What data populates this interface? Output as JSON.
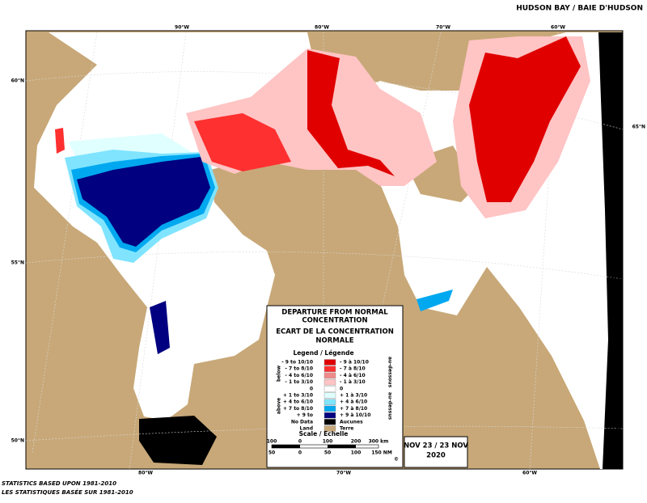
{
  "header": {
    "title": "HUDSON BAY / BAIE D'HUDSON"
  },
  "map": {
    "top_labels": [
      "90°W",
      "80°W",
      "70°W",
      "60°W"
    ],
    "bottom_labels": [
      "80°W",
      "70°W",
      "60°W"
    ],
    "left_labels": [
      "60°N",
      "55°N",
      "50°N"
    ],
    "right_labels": [
      "65°N",
      "60°N",
      "55°N"
    ]
  },
  "legend": {
    "title_en": [
      "DEPARTURE FROM NORMAL",
      "CONCENTRATION"
    ],
    "title_fr": [
      "ECART DE LA CONCENTRATION",
      "NORMALE"
    ],
    "heading": "Legend / Légende",
    "below": "below",
    "above": "above",
    "below_fr": "au-dessous",
    "above_fr": "au-dessus",
    "entries": [
      {
        "left": "- 9 to 10/10",
        "right": "- 9 à 10/10",
        "color": "#e00000"
      },
      {
        "left": "- 7 to 8/10",
        "right": "- 7 à 8/10",
        "color": "#ff3030"
      },
      {
        "left": "- 4 to 6/10",
        "right": "- 4 à 6/10",
        "color": "#f08a8a"
      },
      {
        "left": "- 1 to 3/10",
        "right": "- 1 à 3/10",
        "color": "#ffc4c4"
      },
      {
        "left": "0",
        "right": "0",
        "color": "#ffffff"
      },
      {
        "left": "+ 1 to 3/10",
        "right": "+ 1 à 3/10",
        "color": "#e0ffff"
      },
      {
        "left": "+ 4 to 6/10",
        "right": "+ 4 à 6/10",
        "color": "#80e4ff"
      },
      {
        "left": "+ 7 to 8/10",
        "right": "+ 7 à 8/10",
        "color": "#00a8f0"
      },
      {
        "left": "+ 9 to",
        "right": "+ 9 à 10/10",
        "color": "#000080"
      },
      {
        "left": "No Data",
        "right": "Aucunes",
        "color": "#000000"
      },
      {
        "left": "Land",
        "right": "Terre",
        "color": "#c8a878"
      }
    ],
    "scale_title": "Scale / Echelle",
    "km_labels": [
      "100",
      "0",
      "100",
      "200",
      "300 km"
    ],
    "nm_labels": [
      "50",
      "0",
      "50",
      "100",
      "150 NM"
    ],
    "copyright": "©"
  },
  "date": {
    "line1": "NOV 23 / 23 NOV",
    "line2": "2020"
  },
  "footer": [
    "STATISTICS BASED UPON 1981-2010",
    "LES STATISTIQUES BASÉE SUR 1981-2010"
  ]
}
